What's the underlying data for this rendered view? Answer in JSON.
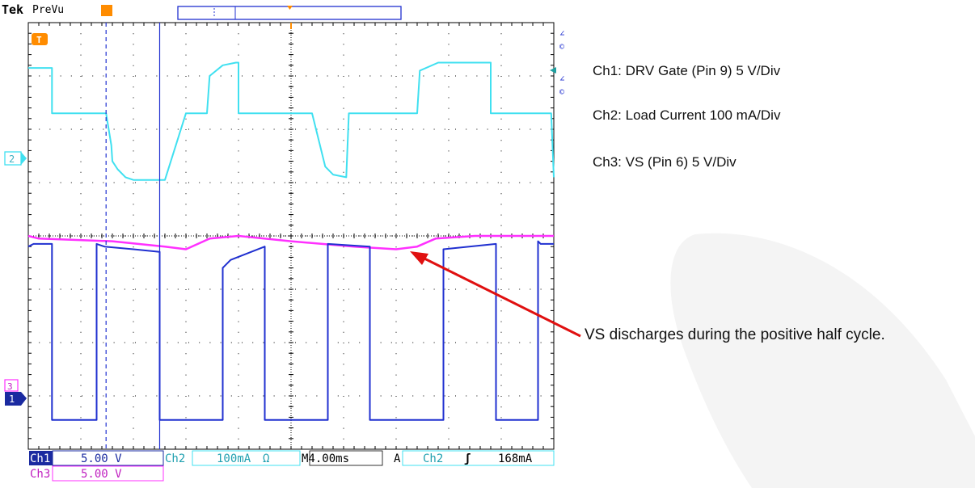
{
  "header": {
    "brand": "Tek",
    "mode": "PreVu",
    "marker": "T"
  },
  "channels": {
    "ch1_name": "Ch1",
    "ch1_scale": "5.00 V",
    "ch2_name": "Ch2",
    "ch2_scale": "100mA",
    "ch2_unit": "Ω",
    "ch3_name": "Ch3",
    "ch3_scale": "5.00 V",
    "timebase": "M4.00ms",
    "trigger_mode": "A",
    "trigger_source": "Ch2",
    "trigger_slope": "ʃ",
    "trigger_level": "168mA",
    "marker_ch2": "2",
    "marker_ch3": "3",
    "marker_ch1": "1"
  },
  "annotations": {
    "ch1": "Ch1: DRV Gate (Pin 9) 5 V/Div",
    "ch2": "Ch2: Load Current 100 mA/Div",
    "ch3": "Ch3: VS (Pin 6) 5 V/Div",
    "arrow": "VS discharges during the positive half cycle."
  },
  "colors": {
    "ch1": "#2030d0",
    "ch2": "#40e0f0",
    "ch3": "#ff30ff",
    "trigger": "#ff8c00",
    "arrow": "#e01010",
    "graticule": "#000000"
  },
  "chart_data": {
    "type": "line",
    "divisions": {
      "x": 10,
      "y": 8
    },
    "timebase_per_div_ms": 4.0,
    "series": [
      {
        "name": "Ch2",
        "x_div": [
          0,
          0.45,
          0.45,
          1.48,
          1.58,
          1.6,
          1.7,
          1.85,
          2.0,
          2.6,
          3.0,
          3.4,
          3.45,
          3.7,
          3.95,
          4.0,
          4.0,
          4.5,
          4.65,
          4.65,
          5.4,
          5.55,
          5.65,
          5.8,
          6.05,
          6.1,
          6.6,
          7.0,
          7.2,
          7.4,
          7.45,
          7.8,
          8.35,
          8.8,
          8.8,
          9.95,
          10.0
        ],
        "y_div": [
          3.15,
          3.15,
          2.3,
          2.3,
          1.7,
          1.4,
          1.25,
          1.1,
          1.05,
          1.05,
          2.3,
          2.3,
          3.0,
          3.2,
          3.25,
          3.25,
          2.3,
          2.3,
          2.3,
          2.3,
          2.3,
          1.7,
          1.3,
          1.15,
          1.1,
          2.3,
          2.3,
          2.3,
          2.3,
          2.3,
          3.1,
          3.25,
          3.25,
          3.25,
          2.3,
          2.3,
          1.1
        ]
      },
      {
        "name": "Ch3",
        "x_div": [
          0,
          0.2,
          1.6,
          2.6,
          3.0,
          3.45,
          4.0,
          5.0,
          6.2,
          7.0,
          7.4,
          7.75,
          8.5,
          10.0
        ],
        "y_div": [
          0.0,
          -0.05,
          -0.1,
          -0.2,
          -0.25,
          -0.05,
          0.0,
          -0.1,
          -0.2,
          -0.25,
          -0.2,
          -0.05,
          0.0,
          0.0
        ]
      },
      {
        "name": "Ch1",
        "x_div": [
          0,
          0.1,
          0.45,
          0.45,
          1.3,
          1.3,
          1.45,
          2.0,
          2.5,
          2.5,
          3.7,
          3.7,
          3.85,
          4.5,
          4.5,
          5.7,
          5.7,
          6.5,
          6.5,
          6.9,
          7.55,
          7.9,
          7.9,
          8.9,
          8.9,
          9.7,
          9.7,
          9.75,
          10.0
        ],
        "y_div": [
          -0.2,
          -0.15,
          -0.15,
          -3.45,
          -3.45,
          -0.15,
          -0.2,
          -0.25,
          -0.3,
          -3.45,
          -3.45,
          -0.6,
          -0.45,
          -0.2,
          -3.45,
          -3.45,
          -0.15,
          -0.2,
          -3.45,
          -3.45,
          -3.45,
          -3.45,
          -0.25,
          -0.15,
          -3.45,
          -3.45,
          -0.1,
          -0.15,
          -0.15
        ]
      }
    ],
    "cursors_div": [
      1.48,
      2.5
    ]
  }
}
